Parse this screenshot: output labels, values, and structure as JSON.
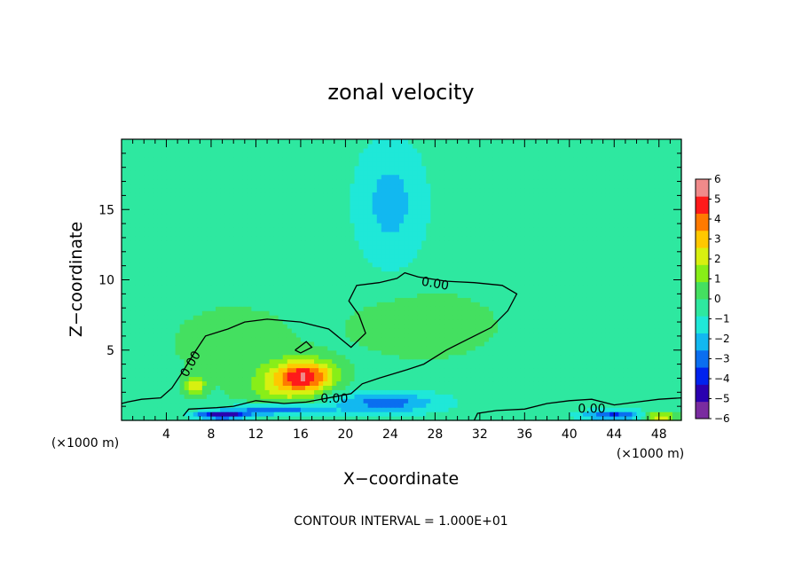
{
  "chart_data": {
    "type": "heatmap",
    "title": "zonal velocity",
    "xlabel": "X−coordinate",
    "ylabel": "Z−coordinate",
    "x_unit": "(×1000 m)",
    "y_unit": "(×1000 m)",
    "xlim": [
      0,
      50
    ],
    "ylim": [
      0,
      20
    ],
    "x_ticks": [
      4,
      8,
      12,
      16,
      20,
      24,
      28,
      32,
      36,
      40,
      44,
      48
    ],
    "y_ticks": [
      5,
      10,
      15
    ],
    "x_tick_labels": [
      "4",
      "8",
      "12",
      "16",
      "20",
      "24",
      "28",
      "32",
      "36",
      "40",
      "44",
      "48"
    ],
    "y_tick_labels": [
      "5",
      "10",
      "15"
    ],
    "colorbar": {
      "range": [
        -6,
        6
      ],
      "ticks": [
        6,
        5,
        4,
        3,
        2,
        1,
        0,
        -1,
        -2,
        -3,
        -4,
        -5,
        -6
      ],
      "tick_labels": [
        "6",
        "5",
        "4",
        "3",
        "2",
        "1",
        "0",
        "−1",
        "−2",
        "−3",
        "−4",
        "−5",
        "−6"
      ],
      "colors": [
        "#7a2ca0",
        "#2a00b0",
        "#0022ee",
        "#0a6ef0",
        "#12b8f0",
        "#1fe8d8",
        "#2ee8a0",
        "#44e060",
        "#88ee18",
        "#d8f010",
        "#ffc800",
        "#ff7a00",
        "#ff1a1a",
        "#f08a8a"
      ]
    },
    "background_value": -0.4,
    "features": [
      {
        "x": 16.5,
        "z": 3.2,
        "value": 4.8,
        "sx": 2.6,
        "sz": 1.1
      },
      {
        "x": 6.5,
        "z": 2.5,
        "value": 3.0,
        "sx": 0.9,
        "sz": 0.6
      },
      {
        "x": 14.5,
        "z": 2.3,
        "value": 2.0,
        "sx": 3.2,
        "sz": 1.6
      },
      {
        "x": 27.0,
        "z": 6.8,
        "value": 1.3,
        "sx": 6.0,
        "sz": 2.2
      },
      {
        "x": 10.0,
        "z": 5.5,
        "value": 0.7,
        "sx": 7.0,
        "sz": 3.5
      },
      {
        "x": 24.0,
        "z": 15.5,
        "value": -1.8,
        "sx": 3.2,
        "sz": 4.5
      },
      {
        "x": 23.5,
        "z": 1.3,
        "value": -2.8,
        "sx": 5.0,
        "sz": 0.8
      },
      {
        "x": 14.0,
        "z": 0.8,
        "value": -3.8,
        "sx": 4.0,
        "sz": 0.4
      },
      {
        "x": 9.0,
        "z": 0.4,
        "value": -5.0,
        "sx": 2.4,
        "sz": 0.3
      },
      {
        "x": 44.0,
        "z": 0.4,
        "value": -3.5,
        "sx": 3.0,
        "sz": 0.35
      },
      {
        "x": 48.0,
        "z": 0.3,
        "value": 3.8,
        "sx": 1.4,
        "sz": 0.3
      }
    ],
    "contours": [
      {
        "level": 0.0,
        "label": "0.00",
        "points": [
          [
            5.5,
            0.3
          ],
          [
            6.0,
            0.8
          ],
          [
            8.5,
            0.9
          ],
          [
            10.0,
            1.0
          ],
          [
            12.0,
            1.4
          ],
          [
            14.5,
            1.2
          ],
          [
            16.5,
            1.3
          ],
          [
            18.5,
            1.6
          ],
          [
            20.5,
            1.9
          ],
          [
            21.5,
            2.6
          ],
          [
            23.0,
            3.0
          ],
          [
            25.5,
            3.6
          ],
          [
            27.0,
            4.0
          ],
          [
            29.0,
            5.0
          ],
          [
            31.0,
            5.8
          ],
          [
            33.0,
            6.6
          ],
          [
            34.5,
            7.8
          ],
          [
            35.3,
            9.0
          ],
          [
            34.0,
            9.6
          ],
          [
            31.5,
            9.8
          ],
          [
            29.0,
            9.9
          ],
          [
            26.5,
            10.2
          ],
          [
            25.3,
            10.5
          ],
          [
            24.6,
            10.1
          ],
          [
            23.0,
            9.8
          ],
          [
            21.0,
            9.6
          ],
          [
            20.3,
            8.5
          ],
          [
            21.2,
            7.5
          ],
          [
            21.8,
            6.2
          ],
          [
            20.5,
            5.2
          ],
          [
            18.5,
            6.5
          ],
          [
            16.0,
            7.0
          ],
          [
            13.0,
            7.2
          ],
          [
            11.0,
            7.0
          ],
          [
            9.5,
            6.5
          ],
          [
            7.5,
            6.0
          ],
          [
            6.5,
            4.8
          ],
          [
            5.5,
            3.5
          ],
          [
            4.5,
            2.3
          ],
          [
            3.5,
            1.6
          ],
          [
            1.8,
            1.5
          ],
          [
            0.5,
            1.3
          ],
          [
            0.0,
            1.2
          ]
        ]
      },
      {
        "level": 0.0,
        "label": "",
        "points": [
          [
            15.5,
            5.0
          ],
          [
            16.5,
            5.6
          ],
          [
            17.0,
            5.2
          ],
          [
            16.0,
            4.8
          ],
          [
            15.5,
            5.0
          ]
        ]
      },
      {
        "level": 0.0,
        "label": "0.00",
        "points": [
          [
            31.5,
            0.0
          ],
          [
            31.8,
            0.5
          ],
          [
            33.5,
            0.7
          ],
          [
            36.0,
            0.8
          ],
          [
            38.0,
            1.2
          ],
          [
            40.0,
            1.4
          ],
          [
            42.0,
            1.5
          ],
          [
            44.0,
            1.1
          ],
          [
            46.0,
            1.3
          ],
          [
            48.0,
            1.5
          ],
          [
            50.0,
            1.6
          ]
        ]
      }
    ],
    "contour_labels": [
      {
        "x": 6.2,
        "z": 4.0,
        "text": "0.00",
        "rotate": -60
      },
      {
        "x": 19.0,
        "z": 1.5,
        "text": "0.00",
        "rotate": 0
      },
      {
        "x": 28.0,
        "z": 9.7,
        "text": "0.00",
        "rotate": 10
      },
      {
        "x": 42.0,
        "z": 0.8,
        "text": "0.00",
        "rotate": 0
      }
    ]
  },
  "footer": {
    "contour_interval_label": "CONTOUR INTERVAL = 1.000E+01"
  }
}
